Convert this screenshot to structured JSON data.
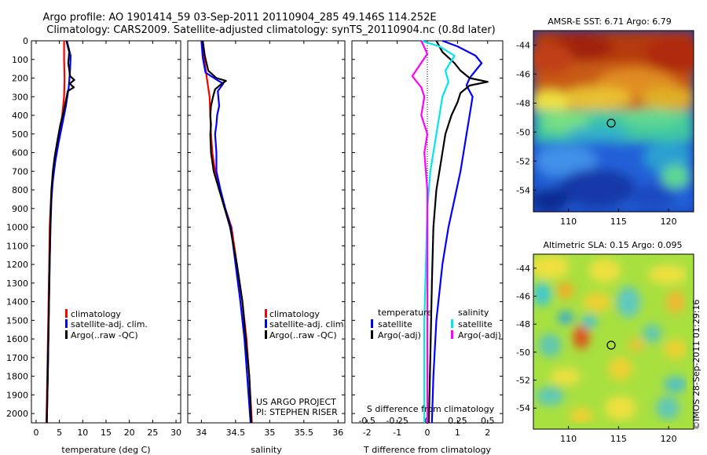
{
  "header": {
    "line1": "Argo profile: AO 1901414_59 03-Sep-2011 20110904_285 49.146S 114.252E",
    "line2": "Climatology: CARS2009. Satellite-adjusted climatology: synTS_20110904.nc (0.8d later)"
  },
  "credit": {
    "project": "US ARGO PROJECT",
    "pi": "PI: STEPHEN RISER",
    "imos": "©IMOS 28-Sep-2011 01:29:16"
  },
  "colors": {
    "climatology": "#ff0000",
    "satellite": "#0000ff",
    "argo": "#000000",
    "satellite_s": "#00e5ee",
    "argo_s": "#ff00ff"
  },
  "chart_data": [
    {
      "type": "line",
      "xlabel": "temperature (deg C)",
      "xlim": [
        -1,
        31
      ],
      "xticks": [
        0,
        5,
        10,
        15,
        20,
        25,
        30
      ],
      "ylim": [
        2050,
        0
      ],
      "yticks": [
        0,
        100,
        200,
        300,
        400,
        500,
        600,
        700,
        800,
        900,
        1000,
        1100,
        1200,
        1300,
        1400,
        1500,
        1600,
        1700,
        1800,
        1900,
        2000
      ],
      "legend": [
        "climatology",
        "satellite-adj. clim.",
        "Argo(..raw -QC)"
      ],
      "series": [
        {
          "name": "climatology",
          "color": "#ff0000",
          "points": [
            [
              6.0,
              0
            ],
            [
              6.0,
              100
            ],
            [
              6.1,
              200
            ],
            [
              6.0,
              300
            ],
            [
              5.6,
              400
            ],
            [
              5.0,
              500
            ],
            [
              4.3,
              600
            ],
            [
              3.7,
              700
            ],
            [
              3.3,
              800
            ],
            [
              3.1,
              900
            ],
            [
              2.9,
              1000
            ],
            [
              2.8,
              1200
            ],
            [
              2.6,
              1500
            ],
            [
              2.4,
              1800
            ],
            [
              2.2,
              2050
            ]
          ]
        },
        {
          "name": "satellite-adj. clim.",
          "color": "#0000ff",
          "points": [
            [
              6.6,
              0
            ],
            [
              7.4,
              80
            ],
            [
              7.3,
              150
            ],
            [
              7.0,
              250
            ],
            [
              6.4,
              350
            ],
            [
              5.6,
              450
            ],
            [
              4.8,
              550
            ],
            [
              4.1,
              650
            ],
            [
              3.6,
              750
            ],
            [
              3.3,
              850
            ],
            [
              3.1,
              1000
            ],
            [
              2.9,
              1200
            ],
            [
              2.7,
              1500
            ],
            [
              2.5,
              1800
            ],
            [
              2.3,
              2050
            ]
          ]
        },
        {
          "name": "Argo(..raw -QC)",
          "color": "#000000",
          "points": [
            [
              6.5,
              0
            ],
            [
              7.1,
              60
            ],
            [
              6.9,
              120
            ],
            [
              7.3,
              190
            ],
            [
              8.2,
              210
            ],
            [
              7.2,
              230
            ],
            [
              8.1,
              250
            ],
            [
              6.8,
              270
            ],
            [
              6.4,
              320
            ],
            [
              5.9,
              380
            ],
            [
              5.2,
              450
            ],
            [
              4.6,
              530
            ],
            [
              4.0,
              620
            ],
            [
              3.6,
              700
            ],
            [
              3.3,
              800
            ],
            [
              3.1,
              950
            ],
            [
              2.9,
              1200
            ],
            [
              2.7,
              1500
            ],
            [
              2.5,
              1800
            ],
            [
              2.3,
              2050
            ]
          ]
        }
      ]
    },
    {
      "type": "line",
      "xlabel": "salinity",
      "xlim": [
        33.8,
        36.1
      ],
      "xticks": [
        34,
        34.5,
        35,
        35.5,
        36
      ],
      "ylim": [
        2050,
        0
      ],
      "legend": [
        "climatology",
        "satellite-adj. clim.",
        "Argo(..raw -QC)"
      ],
      "series": [
        {
          "name": "climatology",
          "color": "#ff0000",
          "points": [
            [
              34.02,
              0
            ],
            [
              34.04,
              100
            ],
            [
              34.08,
              200
            ],
            [
              34.12,
              300
            ],
            [
              34.13,
              400
            ],
            [
              34.14,
              500
            ],
            [
              34.16,
              600
            ],
            [
              34.2,
              700
            ],
            [
              34.27,
              800
            ],
            [
              34.35,
              900
            ],
            [
              34.44,
              1000
            ],
            [
              34.52,
              1200
            ],
            [
              34.6,
              1400
            ],
            [
              34.66,
              1600
            ],
            [
              34.7,
              1800
            ],
            [
              34.74,
              2050
            ]
          ]
        },
        {
          "name": "satellite-adj. clim.",
          "color": "#0000ff",
          "points": [
            [
              34.0,
              0
            ],
            [
              34.02,
              90
            ],
            [
              34.06,
              170
            ],
            [
              34.25,
              215
            ],
            [
              34.32,
              230
            ],
            [
              34.24,
              270
            ],
            [
              34.26,
              350
            ],
            [
              34.23,
              400
            ],
            [
              34.22,
              450
            ],
            [
              34.2,
              500
            ],
            [
              34.22,
              600
            ],
            [
              34.22,
              700
            ],
            [
              34.28,
              800
            ],
            [
              34.35,
              900
            ],
            [
              34.43,
              1000
            ],
            [
              34.5,
              1200
            ],
            [
              34.57,
              1400
            ],
            [
              34.63,
              1600
            ],
            [
              34.67,
              1800
            ],
            [
              34.72,
              2050
            ]
          ]
        },
        {
          "name": "Argo(..raw -QC)",
          "color": "#000000",
          "points": [
            [
              34.02,
              0
            ],
            [
              34.05,
              80
            ],
            [
              34.1,
              160
            ],
            [
              34.22,
              200
            ],
            [
              34.36,
              215
            ],
            [
              34.3,
              230
            ],
            [
              34.2,
              260
            ],
            [
              34.17,
              300
            ],
            [
              34.14,
              350
            ],
            [
              34.13,
              400
            ],
            [
              34.14,
              450
            ],
            [
              34.13,
              500
            ],
            [
              34.14,
              600
            ],
            [
              34.18,
              700
            ],
            [
              34.26,
              800
            ],
            [
              34.34,
              900
            ],
            [
              34.42,
              1000
            ],
            [
              34.52,
              1200
            ],
            [
              34.6,
              1400
            ],
            [
              34.65,
              1600
            ],
            [
              34.7,
              1800
            ],
            [
              34.73,
              2050
            ]
          ]
        }
      ]
    },
    {
      "type": "line",
      "xlabel": "T difference from climatology",
      "xlabel_top": "S difference from climatology",
      "xlim": [
        -2.5,
        2.5
      ],
      "xticks": [
        -2,
        -1,
        0,
        1,
        2
      ],
      "xticks_top": [
        "-0.5",
        "-0.25",
        "0",
        "0.25",
        "0.5"
      ],
      "ylim": [
        2050,
        0
      ],
      "legend": {
        "temperature_title": "temperature",
        "salinity_title": "salinity",
        "items": [
          "satellite",
          "Argo(-adj)",
          "satellite",
          "Argo(-adj)"
        ]
      },
      "series": [
        {
          "name": "temperature satellite",
          "color": "#0000ff",
          "points": [
            [
              0.5,
              0
            ],
            [
              1.0,
              30
            ],
            [
              1.6,
              80
            ],
            [
              1.8,
              120
            ],
            [
              1.6,
              160
            ],
            [
              1.4,
              200
            ],
            [
              1.3,
              240
            ],
            [
              1.5,
              300
            ],
            [
              1.4,
              400
            ],
            [
              1.3,
              500
            ],
            [
              1.2,
              600
            ],
            [
              1.1,
              700
            ],
            [
              0.9,
              850
            ],
            [
              0.7,
              1000
            ],
            [
              0.5,
              1200
            ],
            [
              0.3,
              1500
            ],
            [
              0.2,
              1800
            ],
            [
              0.15,
              2050
            ]
          ]
        },
        {
          "name": "temperature Argo(-adj)",
          "color": "#000000",
          "points": [
            [
              0.3,
              0
            ],
            [
              0.5,
              60
            ],
            [
              0.9,
              120
            ],
            [
              1.1,
              160
            ],
            [
              1.4,
              200
            ],
            [
              2.0,
              220
            ],
            [
              1.4,
              240
            ],
            [
              1.1,
              280
            ],
            [
              1.0,
              330
            ],
            [
              0.8,
              400
            ],
            [
              0.6,
              500
            ],
            [
              0.5,
              600
            ],
            [
              0.4,
              700
            ],
            [
              0.3,
              800
            ],
            [
              0.2,
              1000
            ],
            [
              0.15,
              1300
            ],
            [
              0.1,
              1700
            ],
            [
              0.05,
              2050
            ]
          ]
        },
        {
          "name": "salinity satellite",
          "color": "#00e5ee",
          "points": [
            [
              -0.2,
              0
            ],
            [
              0.4,
              30
            ],
            [
              0.9,
              80
            ],
            [
              0.6,
              160
            ],
            [
              0.7,
              220
            ],
            [
              0.5,
              300
            ],
            [
              0.4,
              400
            ],
            [
              0.3,
              500
            ],
            [
              0.2,
              600
            ],
            [
              0.1,
              700
            ],
            [
              0.0,
              900
            ],
            [
              -0.05,
              1200
            ],
            [
              -0.1,
              1500
            ],
            [
              -0.1,
              1800
            ],
            [
              -0.1,
              2050
            ]
          ]
        },
        {
          "name": "salinity Argo(-adj)",
          "color": "#ff00ff",
          "points": [
            [
              -0.2,
              0
            ],
            [
              0.0,
              70
            ],
            [
              -0.5,
              190
            ],
            [
              -0.2,
              250
            ],
            [
              -0.1,
              300
            ],
            [
              -0.2,
              400
            ],
            [
              0.0,
              500
            ],
            [
              -0.1,
              600
            ],
            [
              -0.05,
              700
            ],
            [
              0.0,
              800
            ],
            [
              0.0,
              1000
            ],
            [
              0.0,
              1300
            ],
            [
              0.0,
              1700
            ],
            [
              0.0,
              2050
            ]
          ]
        }
      ]
    },
    {
      "type": "heatmap",
      "title": "AMSR-E SST: 6.71 Argo: 6.79",
      "xticks": [
        110,
        115,
        120
      ],
      "yticks": [
        -44,
        -46,
        -48,
        -50,
        -52,
        -54
      ],
      "xlim": [
        106.5,
        122.5
      ],
      "ylim": [
        -55.5,
        -43
      ],
      "marker": {
        "lon": 114.252,
        "lat": -49.146
      }
    },
    {
      "type": "heatmap",
      "title": "Altimetric SLA: 0.15 Argo: 0.095",
      "xticks": [
        110,
        115,
        120
      ],
      "yticks": [
        -44,
        -46,
        -48,
        -50,
        -52,
        -54
      ],
      "xlim": [
        106.5,
        122.5
      ],
      "ylim": [
        -55.5,
        -43
      ],
      "marker": {
        "lon": 114.252,
        "lat": -49.146
      }
    }
  ]
}
